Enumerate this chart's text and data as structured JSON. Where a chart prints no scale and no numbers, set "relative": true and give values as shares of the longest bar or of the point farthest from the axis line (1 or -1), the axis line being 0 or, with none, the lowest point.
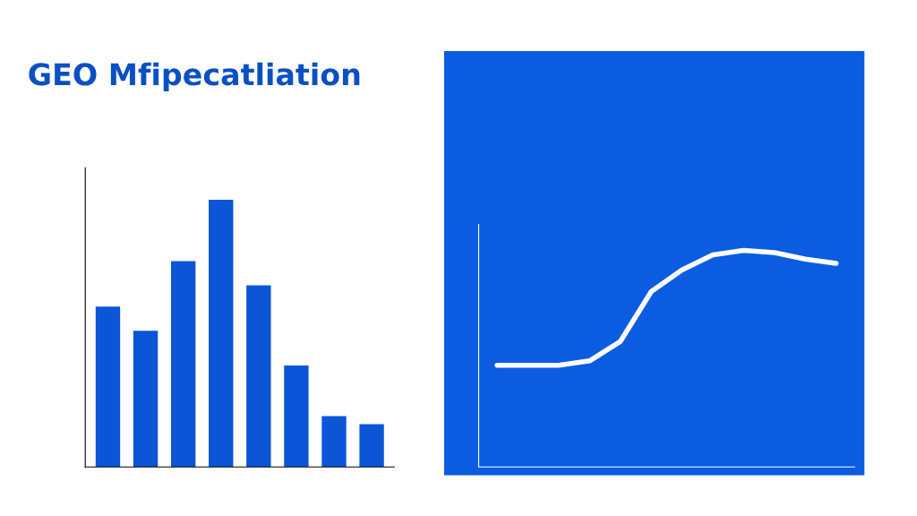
{
  "chart_data": [
    {
      "type": "bar",
      "title": "GEO Mfipecatliation",
      "relative": true,
      "categories": [
        null,
        null,
        null,
        null,
        null,
        null,
        null,
        null
      ],
      "values": [
        0.6,
        0.51,
        0.77,
        1,
        0.68,
        0.38,
        0.19,
        0.16
      ],
      "color": "#0b55d6"
    },
    {
      "type": "line",
      "relative": true,
      "categories": [
        null,
        null,
        null,
        null,
        null,
        null,
        null,
        null,
        null,
        null,
        null,
        null
      ],
      "series": [
        {
          "color": "#ffffff",
          "values": [
            0.47,
            0.47,
            0.47,
            0.49,
            0.58,
            0.81,
            0.91,
            0.98,
            1,
            0.99,
            0.96,
            0.94
          ]
        }
      ]
    }
  ]
}
